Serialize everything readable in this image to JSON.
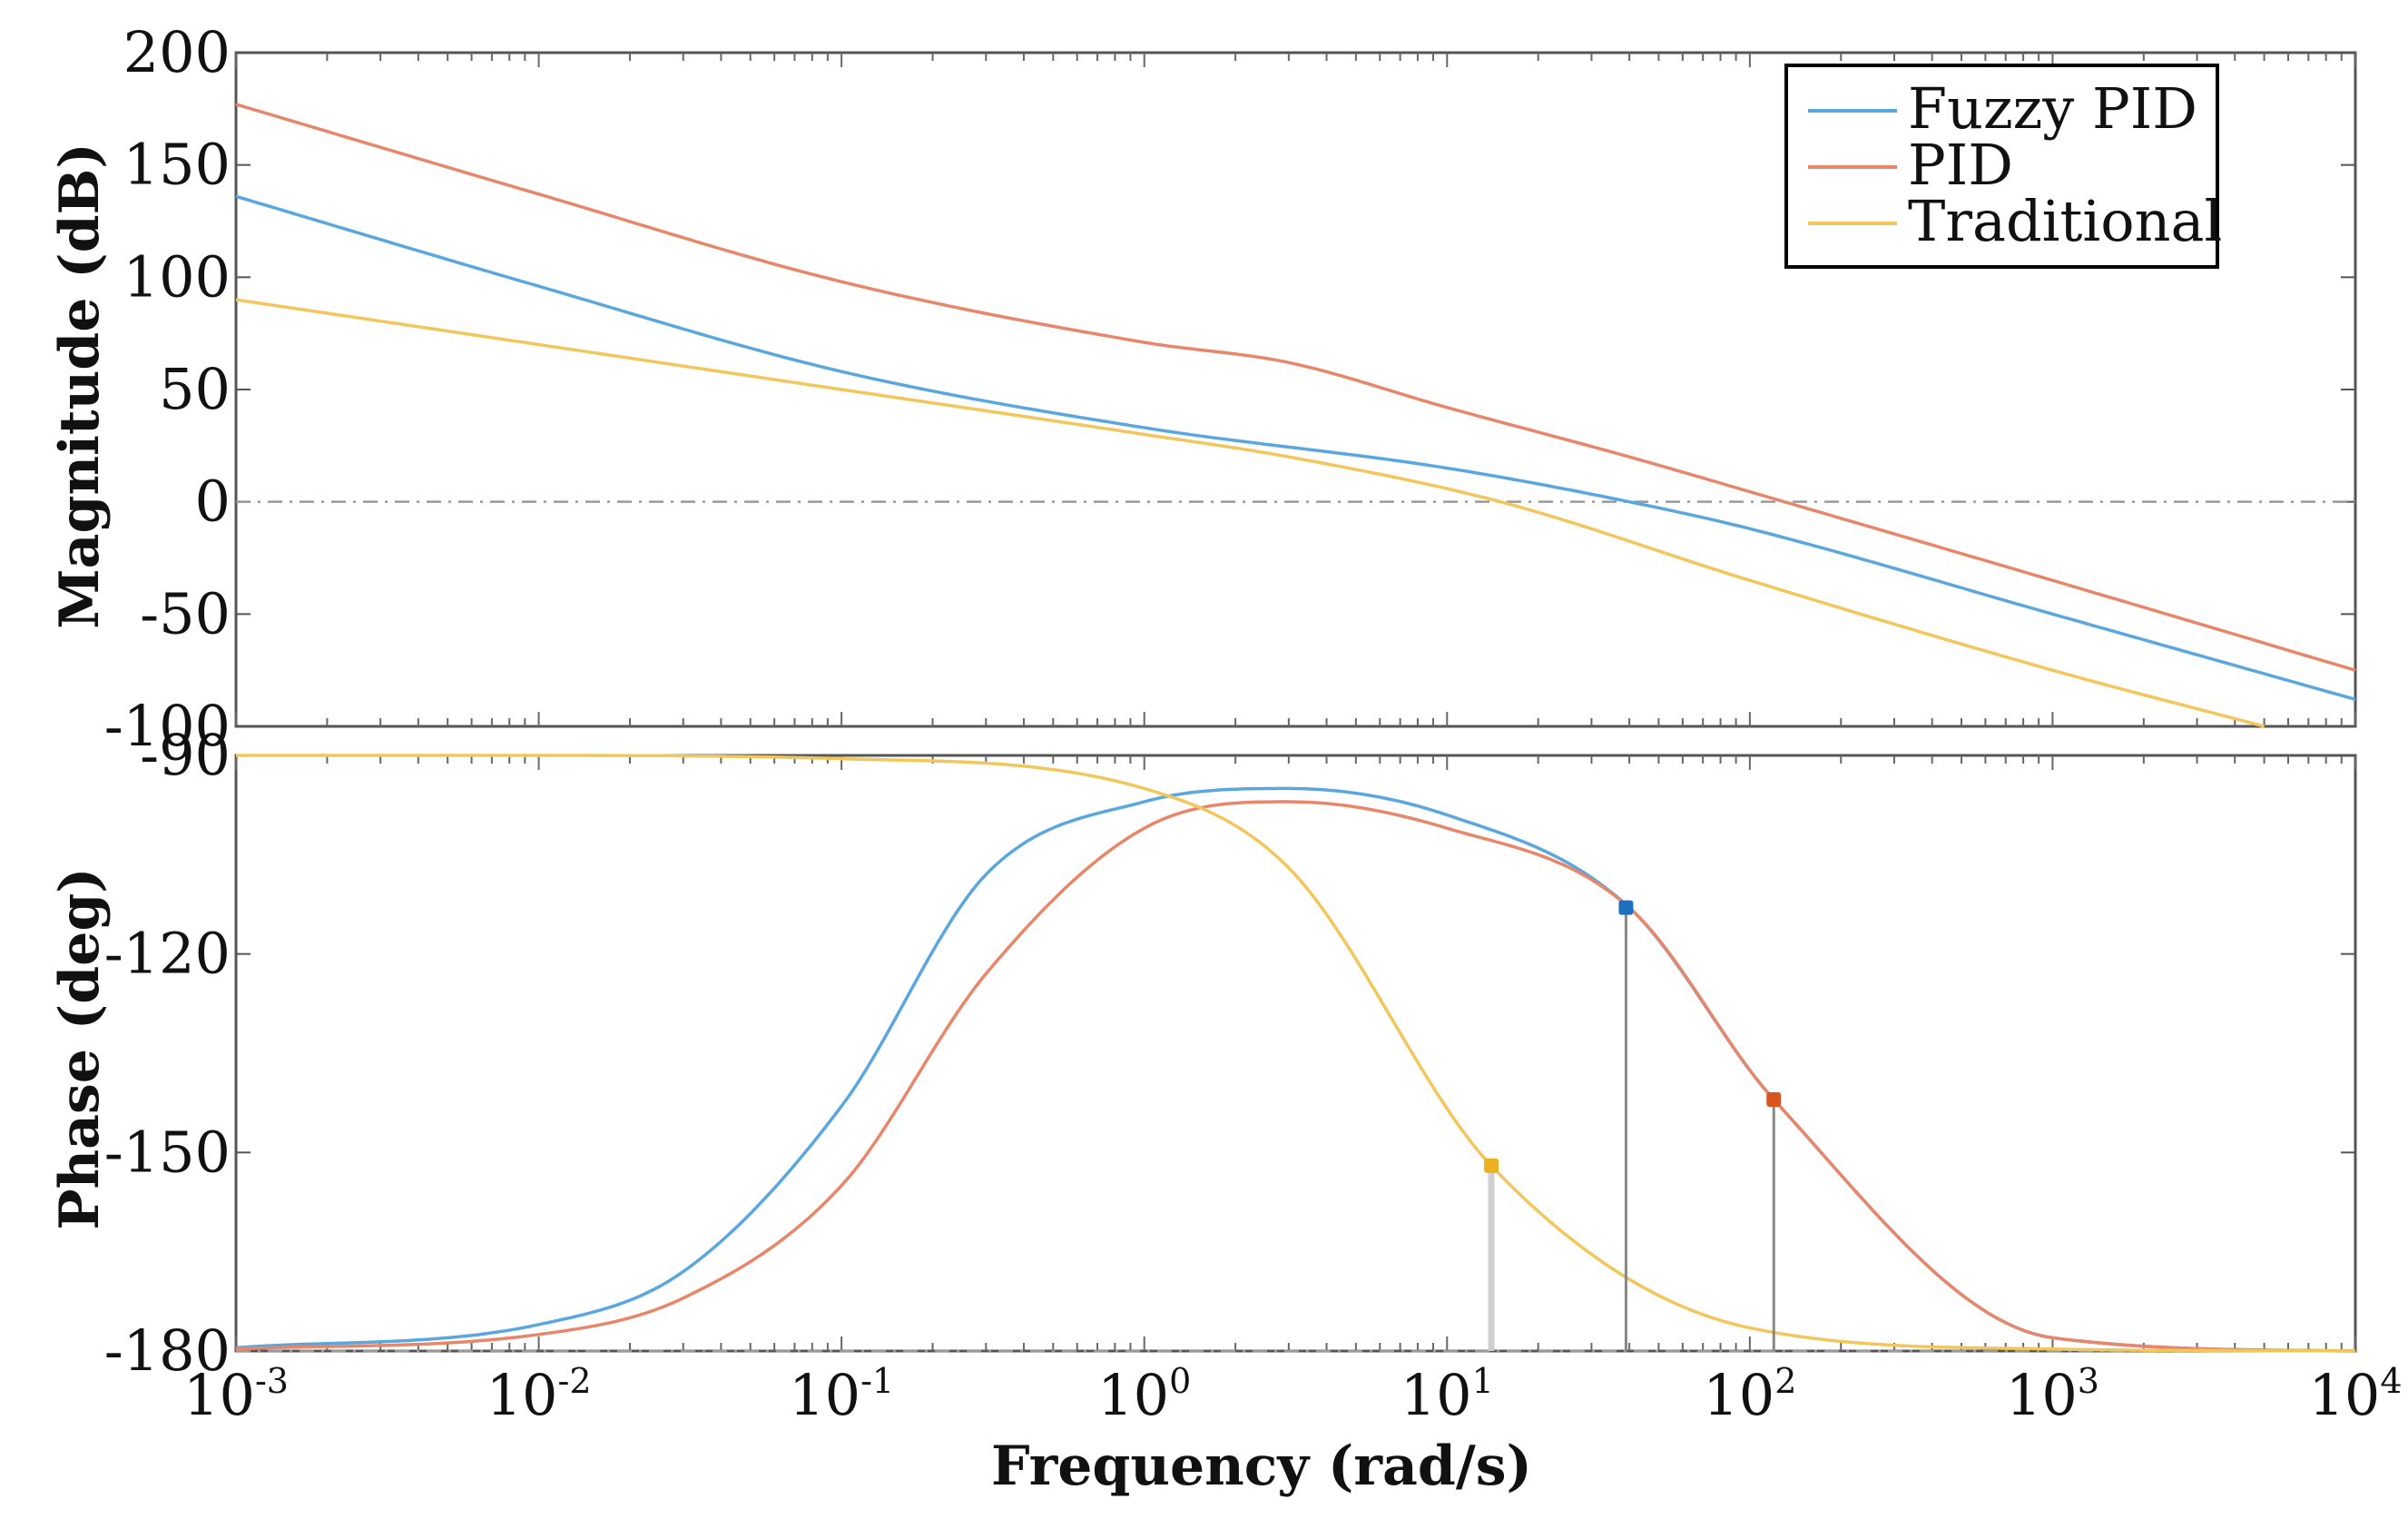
{
  "chart_data": {
    "type": "line",
    "title": "",
    "xlabel": "Frequency (rad/s)",
    "xscale": "log",
    "xlim": [
      0.001,
      10000
    ],
    "xticks": [
      {
        "base": "10",
        "exp": "-3"
      },
      {
        "base": "10",
        "exp": "-2"
      },
      {
        "base": "10",
        "exp": "-1"
      },
      {
        "base": "10",
        "exp": "0"
      },
      {
        "base": "10",
        "exp": "1"
      },
      {
        "base": "10",
        "exp": "2"
      },
      {
        "base": "10",
        "exp": "3"
      },
      {
        "base": "10",
        "exp": "4"
      }
    ],
    "legend": {
      "placement": "top-right",
      "entries": [
        "Fuzzy PID",
        "PID",
        "Traditional"
      ]
    },
    "colors": {
      "Fuzzy PID": "#5aa6df",
      "PID": "#e8866a",
      "Traditional": "#f2c65a",
      "Fuzzy PID_marker": "#1f6fbf",
      "PID_marker": "#d9541e",
      "Traditional_marker": "#edb120"
    },
    "subplots": [
      {
        "name": "magnitude",
        "ylabel": "Magnitude (dB)",
        "ylim": [
          -100,
          200
        ],
        "yticks": [
          200,
          150,
          100,
          50,
          0,
          -50,
          -100
        ],
        "ytick_labels": [
          "200",
          "150",
          "100",
          "50",
          "0",
          "-50",
          "-100"
        ],
        "series": [
          {
            "name": "Fuzzy PID",
            "x": [
              0.001,
              0.01,
              0.1,
              1,
              10,
              40,
              100,
              1000,
              10000
            ],
            "y": [
              136,
              96,
              58,
              33,
              15,
              0,
              -12,
              -50,
              -88
            ]
          },
          {
            "name": "PID",
            "x": [
              0.001,
              0.01,
              0.1,
              1,
              3,
              10,
              40,
              130,
              1000,
              10000
            ],
            "y": [
              177,
              137,
              98,
              71,
              62,
              42,
              20,
              0,
              -35,
              -75
            ]
          },
          {
            "name": "Traditional",
            "x": [
              0.001,
              0.01,
              0.1,
              1,
              3,
              15,
              100,
              1000,
              5000
            ],
            "y": [
              90,
              70,
              50,
              30,
              20,
              0,
              -35,
              -75,
              -100
            ]
          }
        ]
      },
      {
        "name": "phase",
        "ylabel": "Phase (deg)",
        "ylim": [
          -180,
          -90
        ],
        "yticks": [
          -90,
          -120,
          -150,
          -180
        ],
        "ytick_labels": [
          "-90",
          "-120",
          "-150",
          "-180"
        ],
        "series": [
          {
            "name": "Fuzzy PID",
            "x": [
              0.001,
              0.01,
              0.03,
              0.1,
              0.3,
              1,
              3,
              10,
              40,
              120,
              1000,
              10000
            ],
            "y": [
              -179.5,
              -176,
              -168,
              -143,
              -108,
              -97,
              -95,
              -99,
              -113,
              -142,
              -178,
              -180
            ]
          },
          {
            "name": "PID",
            "x": [
              0.001,
              0.01,
              0.03,
              0.1,
              0.3,
              1,
              3,
              10,
              40,
              120,
              1000,
              10000
            ],
            "y": [
              -179.7,
              -177.5,
              -172,
              -155,
              -123,
              -101,
              -97,
              -101,
              -113,
              -142,
              -178,
              -180
            ]
          },
          {
            "name": "Traditional",
            "x": [
              0.001,
              0.01,
              0.1,
              1,
              3,
              14,
              100,
              1000,
              10000
            ],
            "y": [
              -90,
              -90,
              -90.5,
              -95,
              -107,
              -152,
              -176.5,
              -179.7,
              -180
            ]
          }
        ],
        "markers": [
          {
            "name": "Fuzzy PID",
            "x": 39,
            "y": -113
          },
          {
            "name": "PID",
            "x": 120,
            "y": -142
          },
          {
            "name": "Traditional",
            "x": 14,
            "y": -152
          }
        ]
      }
    ]
  }
}
